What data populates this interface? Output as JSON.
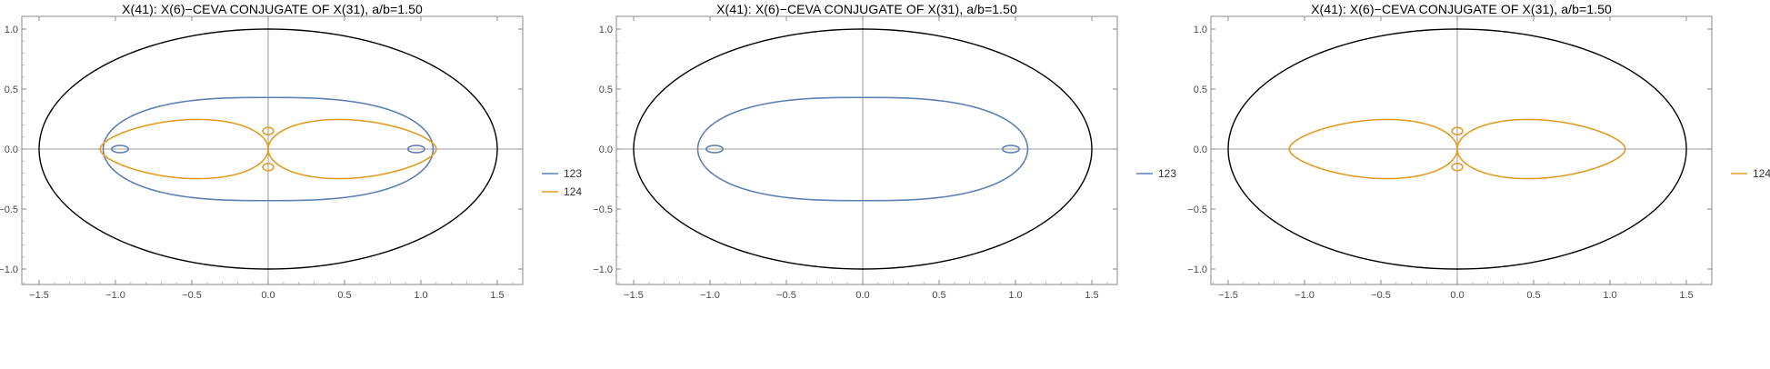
{
  "chart_data": [
    {
      "type": "line",
      "title": "X(41): X(6)−CEVA CONJUGATE OF X(31), a/b=1.50",
      "xlim": [
        -1.65,
        1.65
      ],
      "ylim": [
        -1.1,
        1.1
      ],
      "x_ticks": [
        "-1.5",
        "-1.0",
        "-0.5",
        "0.0",
        "0.5",
        "1.0",
        "1.5"
      ],
      "y_ticks": [
        "-1.0",
        "-0.5",
        "0.0",
        "0.5",
        "1.0"
      ],
      "grid": false,
      "axes_through_origin": true,
      "legend_position": "right",
      "series": [
        {
          "name": "",
          "color": "#000000",
          "shape": "ellipse",
          "a": 1.5,
          "b": 1.0
        },
        {
          "name": "123",
          "color": "#5E81B5",
          "shape": "curve-123",
          "x_extent": 1.08,
          "y_extent": 0.43
        },
        {
          "name": "124",
          "color": "#E19C24",
          "shape": "curve-124",
          "x_extent": 1.1,
          "y_extent": 0.28
        }
      ]
    },
    {
      "type": "line",
      "title": "X(41): X(6)−CEVA CONJUGATE OF X(31), a/b=1.50",
      "xlim": [
        -1.65,
        1.65
      ],
      "ylim": [
        -1.1,
        1.1
      ],
      "x_ticks": [
        "-1.5",
        "-1.0",
        "-0.5",
        "0.0",
        "0.5",
        "1.0",
        "1.5"
      ],
      "y_ticks": [
        "-1.0",
        "-0.5",
        "0.0",
        "0.5",
        "1.0"
      ],
      "grid": false,
      "axes_through_origin": true,
      "legend_position": "right",
      "series": [
        {
          "name": "",
          "color": "#000000",
          "shape": "ellipse",
          "a": 1.5,
          "b": 1.0
        },
        {
          "name": "123",
          "color": "#5E81B5",
          "shape": "curve-123",
          "x_extent": 1.08,
          "y_extent": 0.43
        }
      ]
    },
    {
      "type": "line",
      "title": "X(41): X(6)−CEVA CONJUGATE OF X(31), a/b=1.50",
      "xlim": [
        -1.65,
        1.65
      ],
      "ylim": [
        -1.1,
        1.1
      ],
      "x_ticks": [
        "-1.5",
        "-1.0",
        "-0.5",
        "0.0",
        "0.5",
        "1.0",
        "1.5"
      ],
      "y_ticks": [
        "-1.0",
        "-0.5",
        "0.0",
        "0.5",
        "1.0"
      ],
      "grid": false,
      "axes_through_origin": true,
      "legend_position": "right",
      "series": [
        {
          "name": "",
          "color": "#000000",
          "shape": "ellipse",
          "a": 1.5,
          "b": 1.0
        },
        {
          "name": "124",
          "color": "#E19C24",
          "shape": "curve-124",
          "x_extent": 1.1,
          "y_extent": 0.28
        }
      ]
    }
  ]
}
